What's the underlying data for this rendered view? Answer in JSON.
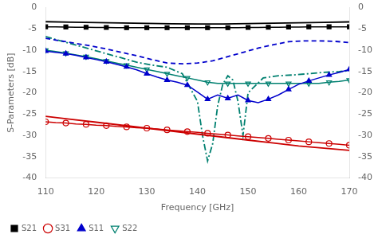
{
  "chart_data": {
    "type": "line",
    "xlabel": "Frequency [GHz]",
    "ylabel": "S-Parameters [dB]",
    "xlim": [
      110,
      170
    ],
    "xticks": [
      110,
      120,
      130,
      140,
      150,
      160,
      170
    ],
    "ylim": [
      -40,
      0
    ],
    "yticks": [
      0,
      -5,
      -10,
      -15,
      -20,
      -25,
      -30,
      -35,
      -40
    ],
    "y2lim": [
      -40,
      0
    ],
    "y2ticks": [
      0,
      -5,
      -10,
      -15,
      -20,
      -25,
      -30,
      -35,
      -40
    ],
    "grid": false,
    "legend": "lower left",
    "series": [
      {
        "name": "S21",
        "color": "#000000",
        "marker": "square",
        "line_style": "solid",
        "x": [
          110,
          112,
          114,
          116,
          118,
          120,
          122,
          124,
          126,
          128,
          130,
          132,
          134,
          136,
          138,
          140,
          142,
          144,
          146,
          148,
          150,
          152,
          154,
          156,
          158,
          160,
          162,
          164,
          166,
          168,
          170
        ],
        "values": [
          -4.5,
          -4.5,
          -4.55,
          -4.6,
          -4.6,
          -4.65,
          -4.65,
          -4.7,
          -4.7,
          -4.7,
          -4.7,
          -4.7,
          -4.7,
          -4.7,
          -4.7,
          -4.7,
          -4.7,
          -4.7,
          -4.7,
          -4.7,
          -4.65,
          -4.65,
          -4.6,
          -4.6,
          -4.55,
          -4.55,
          -4.5,
          -4.5,
          -4.5,
          -4.5,
          -4.5
        ]
      },
      {
        "color": "#000000",
        "line_style": "solid",
        "x": [
          110,
          115,
          120,
          125,
          130,
          135,
          140,
          145,
          150,
          155,
          160,
          165,
          170
        ],
        "values": [
          -3.3,
          -3.4,
          -3.5,
          -3.6,
          -3.7,
          -3.8,
          -3.85,
          -3.85,
          -3.75,
          -3.65,
          -3.55,
          -3.45,
          -3.35
        ]
      },
      {
        "name": "S31",
        "color": "#cc0000",
        "marker": "open-circle",
        "line_style": "solid",
        "x": [
          110,
          112,
          114,
          116,
          118,
          120,
          122,
          124,
          126,
          128,
          130,
          132,
          134,
          136,
          138,
          140,
          142,
          144,
          146,
          148,
          150,
          152,
          154,
          156,
          158,
          160,
          162,
          164,
          166,
          168,
          170
        ],
        "values": [
          -26.8,
          -27.0,
          -27.1,
          -27.3,
          -27.4,
          -27.6,
          -27.7,
          -27.9,
          -28.0,
          -28.2,
          -28.3,
          -28.5,
          -28.7,
          -28.9,
          -29.1,
          -29.3,
          -29.5,
          -29.7,
          -29.9,
          -30.1,
          -30.3,
          -30.5,
          -30.7,
          -30.9,
          -31.1,
          -31.3,
          -31.5,
          -31.7,
          -31.9,
          -32.1,
          -32.3
        ]
      },
      {
        "color": "#cc0000",
        "line_style": "solid",
        "x": [
          110,
          115,
          120,
          125,
          130,
          135,
          140,
          145,
          150,
          155,
          160,
          165,
          170
        ],
        "values": [
          -25.5,
          -26.2,
          -26.9,
          -27.6,
          -28.3,
          -29.0,
          -29.7,
          -30.4,
          -31.1,
          -31.8,
          -32.5,
          -33.0,
          -33.5
        ]
      },
      {
        "name": "S11",
        "color": "#0000cc",
        "marker": "triangle-up",
        "line_style": "solid",
        "x": [
          110,
          112,
          114,
          116,
          118,
          120,
          122,
          124,
          126,
          128,
          130,
          132,
          134,
          136,
          138,
          140,
          142,
          144,
          146,
          148,
          150,
          152,
          154,
          156,
          158,
          160,
          162,
          164,
          166,
          168,
          170
        ],
        "values": [
          -10.2,
          -10.5,
          -10.8,
          -11.2,
          -11.7,
          -12.2,
          -12.7,
          -13.3,
          -13.9,
          -14.6,
          -15.5,
          -16.3,
          -17.0,
          -17.5,
          -18.2,
          -19.8,
          -21.5,
          -20.5,
          -21.3,
          -20.5,
          -21.8,
          -22.3,
          -21.5,
          -20.5,
          -19.2,
          -18.0,
          -17.2,
          -16.5,
          -15.8,
          -15.2,
          -14.5
        ]
      },
      {
        "color": "#0000cc",
        "line_style": "dashed",
        "x": [
          110,
          113,
          116,
          119,
          122,
          125,
          128,
          131,
          134,
          137,
          140,
          143,
          146,
          149,
          152,
          155,
          158,
          161,
          164,
          167,
          170
        ],
        "values": [
          -7.2,
          -7.8,
          -8.4,
          -9.0,
          -9.7,
          -10.5,
          -11.3,
          -12.2,
          -13.0,
          -13.2,
          -13.0,
          -12.5,
          -11.5,
          -10.5,
          -9.5,
          -8.7,
          -8.0,
          -7.8,
          -7.8,
          -7.9,
          -8.2
        ]
      },
      {
        "name": "S22",
        "color": "#008070",
        "marker": "open-triangle-down",
        "line_style": "solid",
        "x": [
          110,
          112,
          114,
          116,
          118,
          120,
          122,
          124,
          126,
          128,
          130,
          132,
          134,
          136,
          138,
          140,
          142,
          144,
          146,
          148,
          150,
          152,
          154,
          156,
          158,
          160,
          162,
          164,
          166,
          168,
          170
        ],
        "values": [
          -10.0,
          -10.3,
          -10.7,
          -11.1,
          -11.5,
          -12.0,
          -12.5,
          -13.0,
          -13.5,
          -14.0,
          -14.5,
          -15.0,
          -15.5,
          -16.0,
          -16.5,
          -17.0,
          -17.5,
          -17.8,
          -17.8,
          -17.8,
          -17.8,
          -17.8,
          -17.8,
          -17.8,
          -17.8,
          -17.8,
          -17.8,
          -17.8,
          -17.5,
          -17.3,
          -17.0
        ]
      },
      {
        "color": "#008070",
        "line_style": "dashdot",
        "x": [
          110,
          113,
          116,
          119,
          122,
          125,
          128,
          131,
          134,
          137,
          140,
          141,
          142,
          143,
          144,
          145,
          146,
          147,
          148,
          149,
          150,
          153,
          156,
          159,
          162,
          165,
          168,
          170
        ],
        "values": [
          -6.8,
          -7.8,
          -8.8,
          -9.8,
          -10.8,
          -11.8,
          -12.8,
          -13.5,
          -14.0,
          -15.5,
          -22.0,
          -30.0,
          -36.0,
          -32.0,
          -23.0,
          -18.0,
          -16.0,
          -17.0,
          -22.0,
          -30.0,
          -20.0,
          -16.5,
          -16.0,
          -15.8,
          -15.5,
          -15.2,
          -15.0,
          -14.8
        ]
      }
    ]
  }
}
